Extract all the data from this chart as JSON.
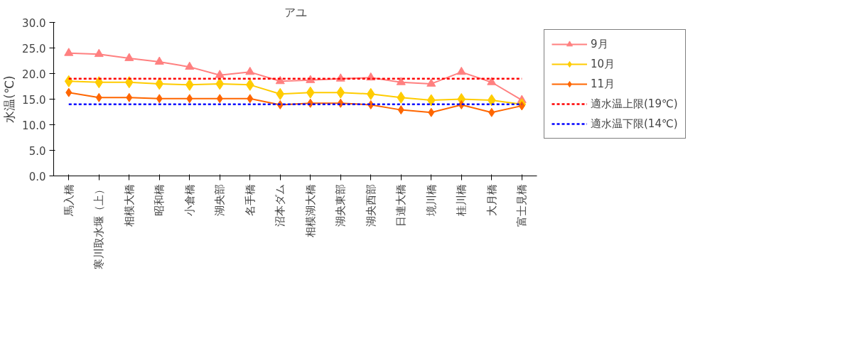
{
  "chart_data": {
    "type": "line",
    "title": "アユ",
    "ylabel": "水温(℃)",
    "categories": [
      "馬入橋",
      "寒川取水堰（上）",
      "相模大橋",
      "昭和橋",
      "小倉橋",
      "湖央部",
      "名手橋",
      "沼本ダム",
      "相模湖大橋",
      "湖央東部",
      "湖央西部",
      "日連大橋",
      "境川橋",
      "桂川橋",
      "大月橋",
      "富士見橋"
    ],
    "series": [
      {
        "name": "9月",
        "color": "#ff8080",
        "marker": "triangle",
        "values": [
          24.0,
          23.8,
          23.0,
          22.3,
          21.3,
          19.7,
          20.3,
          18.5,
          18.7,
          19.0,
          19.2,
          18.3,
          18.0,
          20.3,
          18.3,
          14.8
        ]
      },
      {
        "name": "10月",
        "color": "#ffcc00",
        "marker": "diamond",
        "values": [
          18.5,
          18.3,
          18.3,
          18.0,
          17.8,
          18.0,
          17.8,
          16.0,
          16.3,
          16.3,
          16.0,
          15.3,
          14.8,
          15.0,
          14.8,
          14.0
        ]
      },
      {
        "name": "11月",
        "color": "#ff6600",
        "marker": "diamond",
        "values": [
          16.3,
          15.3,
          15.3,
          15.1,
          15.1,
          15.1,
          15.1,
          13.9,
          14.2,
          14.2,
          13.9,
          12.9,
          12.4,
          13.9,
          12.4,
          13.7
        ]
      }
    ],
    "ref_lines": [
      {
        "axis": "y",
        "value": 19,
        "label": "適水温上限(19℃)",
        "color": "#ff0000",
        "line_style": "dotted"
      },
      {
        "axis": "y",
        "value": 14,
        "label": "適水温下限(14℃)",
        "color": "#0000ff",
        "line_style": "dotted"
      }
    ],
    "ylim": [
      0,
      30
    ],
    "yticks": [
      {
        "value": 0,
        "label": "0.0"
      },
      {
        "value": 5,
        "label": "5.0"
      },
      {
        "value": 10,
        "label": "10.0"
      },
      {
        "value": 15,
        "label": "15.0"
      },
      {
        "value": 20,
        "label": "20.0"
      },
      {
        "value": 25,
        "label": "25.0"
      },
      {
        "value": 30,
        "label": "30.0"
      }
    ],
    "grid": false,
    "legend": "right"
  }
}
